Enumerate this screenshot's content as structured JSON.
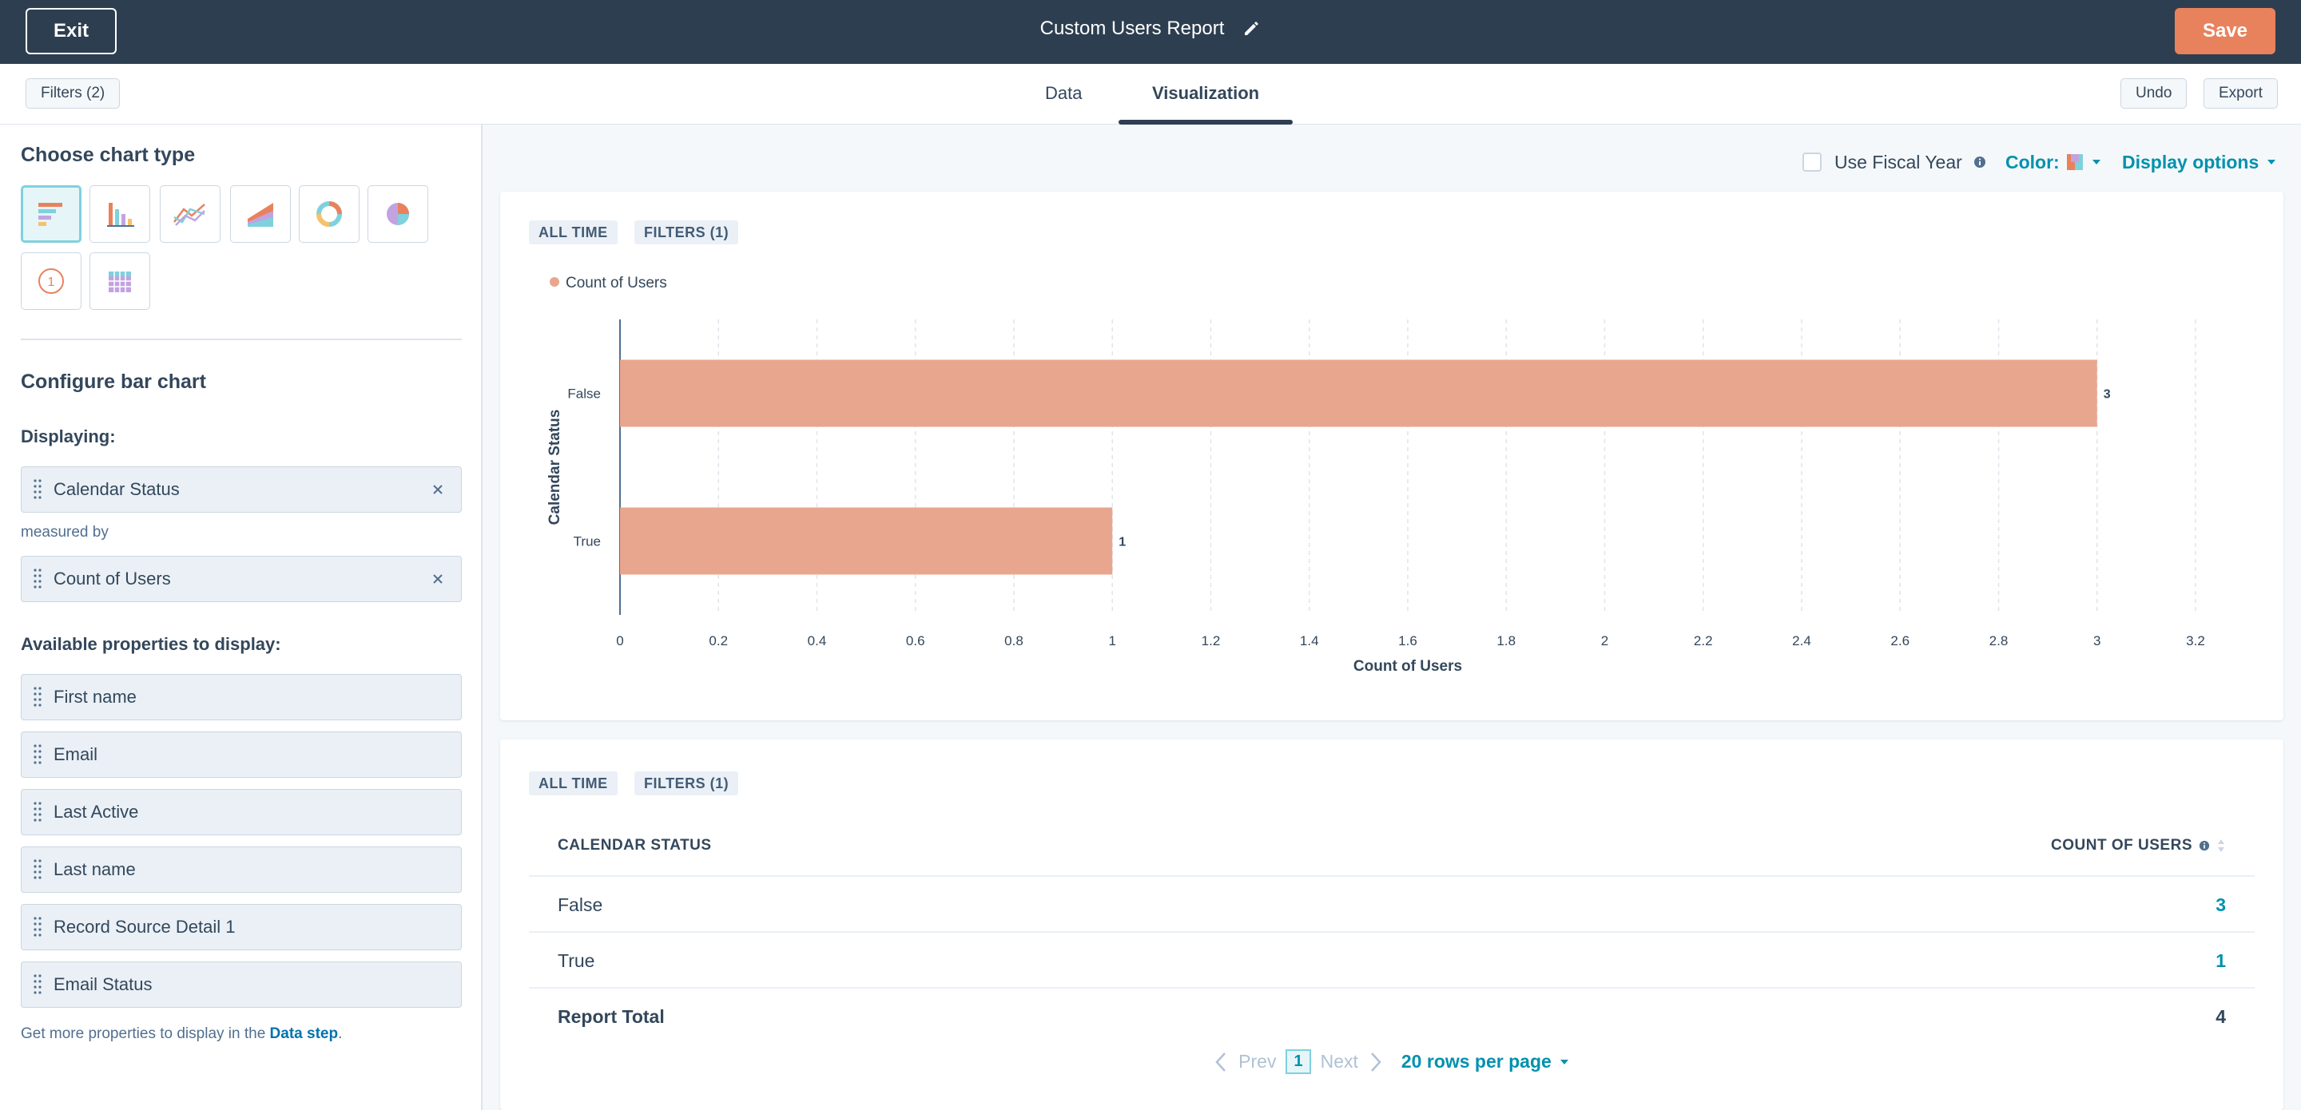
{
  "header": {
    "exit_label": "Exit",
    "title": "Custom Users Report",
    "save_label": "Save"
  },
  "subbar": {
    "filters_label": "Filters (2)",
    "tabs": [
      {
        "label": "Data",
        "active": false
      },
      {
        "label": "Visualization",
        "active": true
      }
    ],
    "undo_label": "Undo",
    "export_label": "Export"
  },
  "left_panel": {
    "choose_heading": "Choose chart type",
    "chart_types": [
      "horizontal-bar",
      "column",
      "line",
      "area",
      "donut",
      "pie",
      "summary",
      "pivot-table"
    ],
    "selected_chart_type": "horizontal-bar",
    "configure_heading": "Configure bar chart",
    "displaying_label": "Displaying:",
    "displaying_value": "Calendar Status",
    "measured_by_label": "measured by",
    "measured_value": "Count of Users",
    "available_label": "Available properties to display:",
    "available_properties": [
      "First name",
      "Email",
      "Last Active",
      "Last name",
      "Record Source Detail 1",
      "Email Status"
    ],
    "help_text_prefix": "Get more properties to display in the ",
    "help_link": "Data step",
    "help_text_suffix": "."
  },
  "viz_options": {
    "fiscal_year_label": "Use Fiscal Year",
    "fiscal_year_checked": false,
    "color_label": "Color:",
    "display_options_label": "Display options"
  },
  "chart_card": {
    "tag_time": "ALL TIME",
    "tag_filters": "FILTERS (1)"
  },
  "chart_data": {
    "type": "bar",
    "orientation": "horizontal",
    "categories": [
      "False",
      "True"
    ],
    "series": [
      {
        "name": "Count of Users",
        "values": [
          3,
          1
        ],
        "color": "#e8a68f"
      }
    ],
    "data_labels": [
      "3",
      "1"
    ],
    "xlabel": "Count of Users",
    "ylabel": "Calendar Status",
    "xlim": [
      0,
      3.2
    ],
    "xticks": [
      "0",
      "0.2",
      "0.4",
      "0.6",
      "0.8",
      "1",
      "1.2",
      "1.4",
      "1.6",
      "1.8",
      "2",
      "2.2",
      "2.4",
      "2.6",
      "2.8",
      "3",
      "3.2"
    ],
    "grid": true,
    "legend": "top-left"
  },
  "table_card": {
    "tag_time": "ALL TIME",
    "tag_filters": "FILTERS (1)",
    "col_left": "CALENDAR STATUS",
    "col_right": "COUNT OF USERS",
    "rows": [
      {
        "status": "False",
        "count": "3"
      },
      {
        "status": "True",
        "count": "1"
      }
    ],
    "total_label": "Report Total",
    "total_value": "4"
  },
  "pager": {
    "prev": "Prev",
    "page": "1",
    "next": "Next",
    "rows_per_page": "20 rows per page"
  },
  "colors": {
    "nav_bg": "#2d3e50",
    "save": "#e8825c",
    "accent": "#0091ae",
    "bar": "#e8a68f"
  }
}
